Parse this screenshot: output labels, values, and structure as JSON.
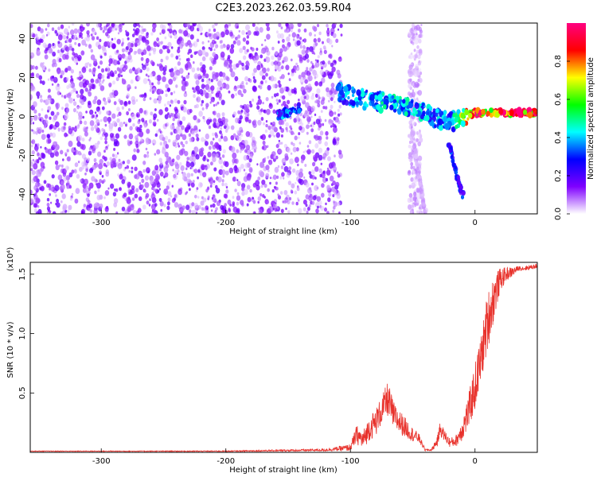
{
  "title": "C2E3.2023.262.03.59.R04",
  "chart_data": [
    {
      "type": "heatmap",
      "xlabel": "Height of straight line (km)",
      "ylabel": "Frequency (Hz)",
      "xlim": [
        -357,
        50
      ],
      "ylim": [
        -50,
        48
      ],
      "xticks": [
        -300,
        -200,
        -100,
        0
      ],
      "yticks": [
        -40,
        -20,
        0,
        20,
        40
      ],
      "colorbar": {
        "label": "Normalized spectral amplitude",
        "range": [
          0,
          1
        ],
        "ticks": [
          "0.0",
          "0.2",
          "0.4",
          "0.6",
          "0.8"
        ],
        "tick_values": [
          0.0,
          0.2,
          0.4,
          0.6,
          0.8
        ],
        "colormap": [
          "#ffffff",
          "#7f00ff",
          "#0000ff",
          "#00ffff",
          "#00ff00",
          "#ffff00",
          "#ff0000",
          "#ff0080"
        ]
      },
      "features": [
        {
          "name": "noise-field",
          "x_range": [
            -357,
            -107
          ],
          "freq_range": [
            -50,
            48
          ],
          "amplitude": 0.1
        },
        {
          "name": "noise-band",
          "x_range": [
            -53,
            -43
          ],
          "freq_range": [
            -50,
            48
          ],
          "amplitude": 0.05
        },
        {
          "name": "signal-ridge",
          "x": [
            -110,
            -90,
            -70,
            -50,
            -35,
            -20,
            -10,
            0,
            50
          ],
          "freq": [
            12,
            9,
            7,
            5,
            0,
            -3,
            0,
            2,
            2
          ],
          "amplitude": [
            0.35,
            0.4,
            0.45,
            0.4,
            0.4,
            0.35,
            0.7,
            0.9,
            0.95
          ]
        },
        {
          "name": "descending-branch",
          "x": [
            -20,
            -15,
            -10
          ],
          "freq": [
            -15,
            -30,
            -40
          ],
          "amplitude": 0.25
        },
        {
          "name": "faint-streak",
          "x": [
            -50,
            -40
          ],
          "freq": [
            -10,
            -50
          ],
          "amplitude": 0.05
        },
        {
          "name": "isolated-patch",
          "x": [
            -160,
            -140
          ],
          "freq": [
            0,
            5
          ],
          "amplitude": 0.3
        }
      ]
    },
    {
      "type": "line",
      "xlabel": "Height of straight line (km)",
      "ylabel": "SNR (10 * v/v)",
      "y_multiplier": "(x10⁴)",
      "xlim": [
        -357,
        50
      ],
      "ylim": [
        0,
        1.6
      ],
      "xticks": [
        -300,
        -200,
        -100,
        0
      ],
      "yticks": [
        0.5,
        1.0,
        1.5
      ],
      "ytick_labels": [
        "0.5",
        "1.0",
        "1.5"
      ],
      "line_color": "#e8322c",
      "series": [
        {
          "x": [
            -357,
            -300,
            -200,
            -120,
            -100,
            -95,
            -90,
            -85,
            -80,
            -75,
            -70,
            -65,
            -60,
            -55,
            -50,
            -45,
            -40,
            -35,
            -30,
            -28,
            -25,
            -20,
            -15,
            -10,
            -5,
            0,
            5,
            10,
            15,
            20,
            25,
            30,
            35,
            40,
            45,
            50
          ],
          "y": [
            0.01,
            0.01,
            0.01,
            0.02,
            0.04,
            0.15,
            0.1,
            0.2,
            0.25,
            0.35,
            0.45,
            0.3,
            0.25,
            0.2,
            0.15,
            0.12,
            0.02,
            0.02,
            0.1,
            0.2,
            0.15,
            0.08,
            0.1,
            0.2,
            0.35,
            0.55,
            0.8,
            1.1,
            1.3,
            1.45,
            1.5,
            1.52,
            1.55,
            1.55,
            1.56,
            1.57
          ],
          "noise": [
            0.003,
            0.003,
            0.004,
            0.01,
            0.03,
            0.08,
            0.08,
            0.1,
            0.12,
            0.12,
            0.15,
            0.12,
            0.1,
            0.08,
            0.06,
            0.04,
            0.01,
            0.01,
            0.05,
            0.06,
            0.05,
            0.04,
            0.05,
            0.1,
            0.15,
            0.2,
            0.2,
            0.25,
            0.2,
            0.1,
            0.06,
            0.04,
            0.02,
            0.02,
            0.02,
            0.02
          ]
        }
      ]
    }
  ]
}
